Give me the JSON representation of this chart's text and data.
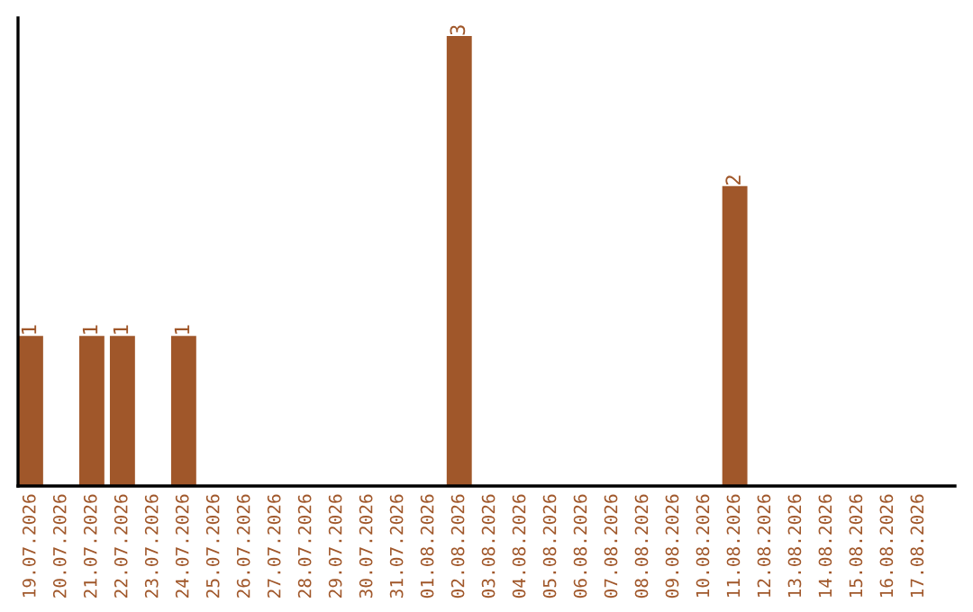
{
  "chart_data": {
    "type": "bar",
    "categories": [
      "19.07.2026",
      "20.07.2026",
      "21.07.2026",
      "22.07.2026",
      "23.07.2026",
      "24.07.2026",
      "25.07.2026",
      "26.07.2026",
      "27.07.2026",
      "28.07.2026",
      "29.07.2026",
      "30.07.2026",
      "31.07.2026",
      "01.08.2026",
      "02.08.2026",
      "03.08.2026",
      "04.08.2026",
      "05.08.2026",
      "06.08.2026",
      "07.08.2026",
      "08.08.2026",
      "09.08.2026",
      "10.08.2026",
      "11.08.2026",
      "12.08.2026",
      "13.08.2026",
      "14.08.2026",
      "15.08.2026",
      "16.08.2026",
      "17.08.2026"
    ],
    "values": [
      1,
      0,
      1,
      1,
      0,
      1,
      0,
      0,
      0,
      0,
      0,
      0,
      0,
      0,
      3,
      0,
      0,
      0,
      0,
      0,
      0,
      0,
      0,
      2,
      0,
      0,
      0,
      0,
      0,
      0
    ],
    "value_labels": [
      "1",
      null,
      "1",
      "1",
      null,
      "1",
      null,
      null,
      null,
      null,
      null,
      null,
      null,
      null,
      "3",
      null,
      null,
      null,
      null,
      null,
      null,
      null,
      null,
      "2",
      null,
      null,
      null,
      null,
      null,
      null
    ],
    "color": "#a0572a",
    "tick_labels": "x",
    "grid": false,
    "legend": false
  }
}
